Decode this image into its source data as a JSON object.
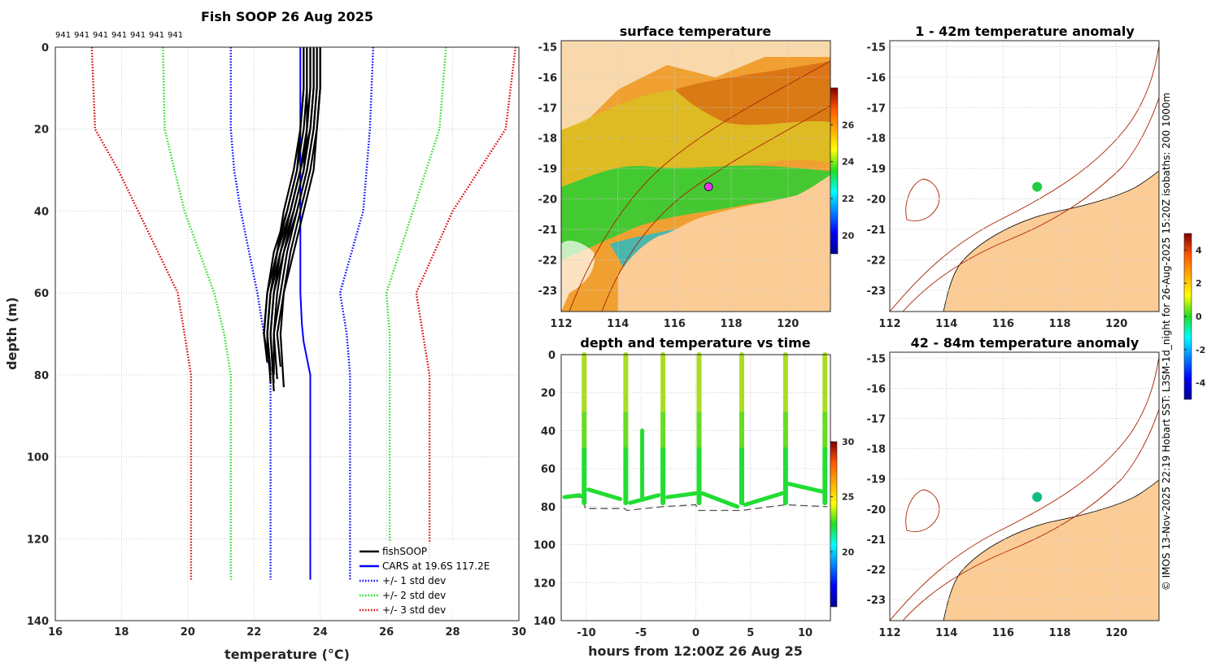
{
  "chart_data": [
    {
      "type": "line",
      "id": "profile",
      "title": "Fish SOOP 26 Aug 2025",
      "xlabel": "temperature (°C)",
      "ylabel": "depth (m)",
      "xlim": [
        16,
        30
      ],
      "ylim": [
        0,
        140
      ],
      "xticks": [
        "16",
        "18",
        "20",
        "22",
        "24",
        "26",
        "28",
        "30"
      ],
      "yticks": [
        "0",
        "20",
        "40",
        "60",
        "80",
        "100",
        "120",
        "140"
      ],
      "top_labels": [
        "941",
        "941",
        "941",
        "941",
        "941",
        "941",
        "941"
      ],
      "legend": [
        {
          "label": "fishSOOP",
          "color": "#000000",
          "style": "solid"
        },
        {
          "label": "CARS at 19.6S 117.2E",
          "color": "#0000ff",
          "style": "solid"
        },
        {
          "label": "+/- 1 std dev",
          "color": "#0000ff",
          "style": "dotted"
        },
        {
          "label": "+/- 2 std dev",
          "color": "#00dd00",
          "style": "dotted"
        },
        {
          "label": "+/- 3 std dev",
          "color": "#dd0000",
          "style": "dotted"
        }
      ],
      "cars_mean": {
        "depth": [
          0,
          20,
          40,
          60,
          68,
          72,
          76,
          80,
          130
        ],
        "temp": [
          23.4,
          23.4,
          23.4,
          23.4,
          23.45,
          23.5,
          23.6,
          23.7,
          23.7
        ]
      },
      "std_depth": [
        0,
        20,
        30,
        40,
        60,
        70,
        80,
        130
      ],
      "std_lower": {
        "s1": [
          21.3,
          21.3,
          21.4,
          21.6,
          22.1,
          22.3,
          22.5,
          22.5
        ],
        "s2": [
          19.25,
          19.3,
          19.6,
          19.9,
          20.8,
          21.1,
          21.3,
          21.3
        ],
        "s3": [
          17.1,
          17.2,
          17.9,
          18.5,
          19.7,
          19.9,
          20.1,
          20.1
        ]
      },
      "std_upper": {
        "s1": [
          25.6,
          25.5,
          25.4,
          25.3,
          24.6,
          24.8,
          24.9,
          24.9
        ],
        "s2": [
          27.8,
          27.6,
          27.2,
          26.8,
          26.0,
          26.1,
          26.1,
          26.1
        ],
        "s3": [
          29.9,
          29.6,
          28.8,
          28.0,
          26.9,
          27.1,
          27.3,
          27.3
        ]
      },
      "fish_profiles": [
        {
          "temp": [
            23.5,
            23.5,
            23.4,
            23.2,
            22.9,
            22.7,
            22.5,
            22.4,
            22.5
          ],
          "depth": [
            0,
            10,
            20,
            30,
            40,
            50,
            60,
            70,
            82
          ]
        },
        {
          "temp": [
            23.7,
            23.7,
            23.6,
            23.4,
            23.1,
            22.8,
            22.6,
            22.5,
            22.6
          ],
          "depth": [
            0,
            10,
            20,
            30,
            40,
            50,
            60,
            70,
            84
          ]
        },
        {
          "temp": [
            23.9,
            23.9,
            23.8,
            23.6,
            23.3,
            23.0,
            22.8,
            22.6,
            22.6
          ],
          "depth": [
            0,
            10,
            20,
            30,
            40,
            50,
            60,
            70,
            80
          ]
        },
        {
          "temp": [
            24.0,
            24.0,
            23.9,
            23.7,
            23.4,
            23.1,
            22.9,
            22.7,
            22.8
          ],
          "depth": [
            0,
            10,
            20,
            30,
            40,
            50,
            60,
            70,
            78
          ]
        },
        {
          "temp": [
            23.6,
            23.6,
            23.5,
            23.3,
            23.0,
            22.6,
            22.4,
            22.3,
            22.4
          ],
          "depth": [
            0,
            10,
            20,
            30,
            40,
            50,
            60,
            70,
            76
          ]
        },
        {
          "temp": [
            23.8,
            23.8,
            23.7,
            23.5,
            23.2,
            22.9,
            22.7,
            22.6,
            22.7
          ],
          "depth": [
            0,
            10,
            20,
            30,
            40,
            50,
            60,
            70,
            81
          ]
        },
        {
          "temp": [
            23.5,
            23.5,
            23.4,
            23.3,
            23.0,
            22.7,
            22.5,
            22.4,
            22.5
          ],
          "depth": [
            0,
            10,
            20,
            30,
            40,
            50,
            60,
            70,
            79
          ]
        },
        {
          "temp": [
            24.0,
            24.0,
            23.9,
            23.8,
            23.5,
            23.2,
            22.9,
            22.8,
            22.9
          ],
          "depth": [
            0,
            10,
            20,
            30,
            40,
            50,
            60,
            70,
            83
          ]
        },
        {
          "temp": [
            23.6,
            23.6,
            23.6,
            23.4,
            23.1,
            22.8,
            22.5,
            22.4,
            22.4
          ],
          "depth": [
            0,
            10,
            20,
            30,
            40,
            50,
            60,
            70,
            75
          ]
        },
        {
          "temp": [
            23.9,
            23.9,
            23.8,
            23.6,
            23.3,
            22.9,
            22.6,
            22.5,
            22.6
          ],
          "depth": [
            0,
            10,
            20,
            30,
            40,
            50,
            60,
            70,
            82
          ]
        },
        {
          "temp": [
            23.7,
            23.7,
            23.6,
            23.5,
            23.2,
            22.8,
            22.5,
            22.4,
            22.5
          ],
          "depth": [
            0,
            10,
            20,
            30,
            40,
            50,
            60,
            70,
            80
          ]
        },
        {
          "temp": [
            23.8,
            23.8,
            23.7,
            23.4,
            23.1,
            22.7,
            22.4,
            22.3,
            22.4
          ],
          "depth": [
            0,
            10,
            20,
            30,
            40,
            50,
            60,
            70,
            77
          ]
        }
      ]
    },
    {
      "type": "heatmap",
      "id": "sst",
      "title": "surface temperature",
      "xlim": [
        112,
        121.5
      ],
      "ylim": [
        -23.7,
        -14.8
      ],
      "xticks": [
        "112",
        "114",
        "116",
        "118",
        "120"
      ],
      "yticks": [
        "-15",
        "-16",
        "-17",
        "-18",
        "-19",
        "-20",
        "-21",
        "-22",
        "-23"
      ],
      "colorbar_ticks": [
        "20",
        "22",
        "24",
        "26"
      ],
      "colorbar_range": [
        19,
        28
      ],
      "marker": {
        "lon": 117.2,
        "lat": -19.6
      }
    },
    {
      "type": "scatter",
      "id": "depth_time",
      "title": "depth and temperature vs time",
      "xlabel": "hours from 12:00Z 26 Aug 25",
      "xlim": [
        -12.3,
        12.3
      ],
      "ylim": [
        0,
        140
      ],
      "xticks": [
        "-10",
        "-5",
        "0",
        "5",
        "10"
      ],
      "yticks": [
        "0",
        "20",
        "40",
        "60",
        "80",
        "100",
        "120",
        "140"
      ],
      "colorbar_ticks": [
        "20",
        "25",
        "30"
      ],
      "colorbar_range": [
        15,
        30
      ],
      "dive_hours": [
        -10.2,
        -6.4,
        -3.0,
        0.3,
        4.2,
        8.2,
        11.8
      ],
      "dive_width_h": 0.18,
      "bottom_segments": [
        {
          "h": [
            -12.0,
            -10.6
          ],
          "d": [
            75,
            74
          ]
        },
        {
          "h": [
            -9.8,
            -6.9
          ],
          "d": [
            71,
            76
          ]
        },
        {
          "h": [
            -6.0,
            -3.4
          ],
          "d": [
            78,
            74
          ]
        },
        {
          "h": [
            -2.6,
            0.0
          ],
          "d": [
            75,
            73
          ]
        },
        {
          "h": [
            0.6,
            3.8
          ],
          "d": [
            73,
            80
          ]
        },
        {
          "h": [
            4.5,
            7.9
          ],
          "d": [
            79,
            73
          ]
        },
        {
          "h": [
            8.5,
            11.5
          ],
          "d": [
            68,
            72
          ]
        }
      ],
      "seafloor": {
        "h": [
          -12.0,
          -10.3,
          -10.1,
          -6.5,
          -6.3,
          -3.0,
          0.0,
          0.2,
          4.2,
          8.2,
          12.0
        ],
        "d": [
          75,
          75,
          81,
          81,
          82,
          80,
          79,
          82,
          82,
          79,
          80
        ]
      },
      "mini_dives": [
        {
          "h": -4.9,
          "top": 40
        }
      ]
    },
    {
      "type": "heatmap",
      "id": "anom1",
      "title": "1 - 42m temperature anomaly",
      "xlim": [
        112,
        121.5
      ],
      "ylim": [
        -23.7,
        -14.8
      ],
      "xticks": [
        "112",
        "114",
        "116",
        "118",
        "120"
      ],
      "yticks": [
        "-15",
        "-16",
        "-17",
        "-18",
        "-19",
        "-20",
        "-21",
        "-22",
        "-23"
      ],
      "blob": {
        "lon": 117.2,
        "lat": -19.6,
        "color": "#22cc44"
      }
    },
    {
      "type": "heatmap",
      "id": "anom2",
      "title": "42 - 84m temperature anomaly",
      "xlim": [
        112,
        121.5
      ],
      "ylim": [
        -23.7,
        -14.8
      ],
      "xticks": [
        "112",
        "114",
        "116",
        "118",
        "120"
      ],
      "yticks": [
        "-15",
        "-16",
        "-17",
        "-18",
        "-19",
        "-20",
        "-21",
        "-22",
        "-23"
      ],
      "blob": {
        "lon": 117.2,
        "lat": -19.6,
        "color": "#11bb88"
      }
    },
    {
      "type": "colorbar",
      "id": "anom_cbar",
      "ticks": [
        "-4",
        "-2",
        "0",
        "2",
        "4"
      ],
      "range": [
        -5,
        5
      ]
    }
  ],
  "side_caption": "© IMOS 13-Nov-2025 22:19 Hobart SST: L3SM-1d_night for 26-Aug-2025 15:20Z isobaths: 200  1000m",
  "colors": {
    "land": "#fccc96",
    "isobath": "#aa2200",
    "grid": "#cccccc",
    "fish": "#000000",
    "cars": "#0000ff"
  }
}
